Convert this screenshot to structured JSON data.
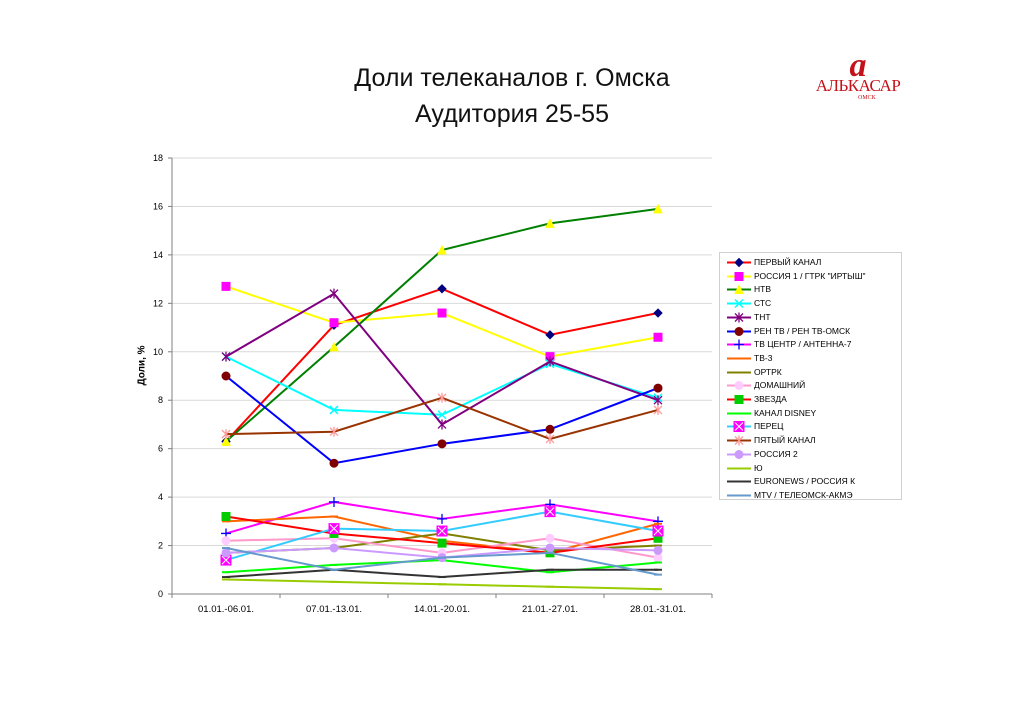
{
  "header": {
    "title_line1": "Доли телеканалов г. Омска",
    "title_line2": "Аудитория 25-55"
  },
  "logo": {
    "mark": "a",
    "name": "АЛЬКАСАР",
    "city": "ОМСК"
  },
  "chart_data": {
    "type": "line",
    "title": "Доли телеканалов г. Омска Аудитория 25-55",
    "xlabel": "",
    "ylabel": "Доли, %",
    "ylim": [
      0,
      18
    ],
    "yticks": [
      0,
      2,
      4,
      6,
      8,
      10,
      12,
      14,
      16,
      18
    ],
    "grid": "horizontal",
    "legend_position": "right",
    "categories": [
      "01.01.-06.01.",
      "07.01.-13.01.",
      "14.01.-20.01.",
      "21.01.-27.01.",
      "28.01.-31.01."
    ],
    "series": [
      {
        "name": "ПЕРВЫЙ КАНАЛ",
        "color": "#ff0000",
        "marker": "diamond",
        "marker_color": "#000080",
        "values": [
          6.3,
          11.1,
          12.6,
          10.7,
          11.6
        ]
      },
      {
        "name": "РОССИЯ 1 / ГТРК \"ИРТЫШ\"",
        "color": "#ffff00",
        "marker": "square",
        "marker_color": "#ff00ff",
        "values": [
          12.7,
          11.2,
          11.6,
          9.8,
          10.6
        ]
      },
      {
        "name": "НТВ",
        "color": "#008000",
        "marker": "triangle",
        "marker_color": "#ffff00",
        "values": [
          6.3,
          10.2,
          14.2,
          15.3,
          15.9
        ]
      },
      {
        "name": "СТС",
        "color": "#00ffff",
        "marker": "x",
        "marker_color": "#00ffff",
        "values": [
          9.8,
          7.6,
          7.4,
          9.5,
          8.1
        ]
      },
      {
        "name": "ТНТ",
        "color": "#800080",
        "marker": "star",
        "marker_color": "#800080",
        "values": [
          9.8,
          12.4,
          7.0,
          9.6,
          8.0
        ]
      },
      {
        "name": "РЕН ТВ / РЕН ТВ-ОМСК",
        "color": "#0000ff",
        "marker": "circle",
        "marker_color": "#800000",
        "values": [
          9.0,
          5.4,
          6.2,
          6.8,
          8.5
        ]
      },
      {
        "name": "ТВ ЦЕНТР / АНТЕННА-7",
        "color": "#ff00ff",
        "marker": "plus",
        "marker_color": "#0000ff",
        "values": [
          2.5,
          3.8,
          3.1,
          3.7,
          3.0
        ]
      },
      {
        "name": "ТВ-3",
        "color": "#ff6600",
        "marker": "dash",
        "marker_color": "#ff6600",
        "values": [
          3.0,
          3.2,
          2.2,
          1.7,
          2.9
        ]
      },
      {
        "name": "ОРТРК",
        "color": "#808000",
        "marker": "dash",
        "marker_color": "#808000",
        "values": [
          1.7,
          1.9,
          2.5,
          1.8,
          2.0
        ]
      },
      {
        "name": "ДОМАШНИЙ",
        "color": "#ff99cc",
        "marker": "circle",
        "marker_color": "#ffccff",
        "values": [
          2.2,
          2.3,
          1.7,
          2.3,
          1.5
        ]
      },
      {
        "name": "ЗВЕЗДА",
        "color": "#ff0000",
        "marker": "square",
        "marker_color": "#00cc00",
        "values": [
          3.2,
          2.5,
          2.1,
          1.7,
          2.3
        ]
      },
      {
        "name": "КАНАЛ DISNEY",
        "color": "#00ff00",
        "marker": "dash",
        "marker_color": "#00ff00",
        "values": [
          0.9,
          1.2,
          1.4,
          0.9,
          1.3
        ]
      },
      {
        "name": "ПЕРЕЦ",
        "color": "#33ccff",
        "marker": "boxx",
        "marker_color": "#ff00ff",
        "values": [
          1.4,
          2.7,
          2.6,
          3.4,
          2.6
        ]
      },
      {
        "name": "ПЯТЫЙ КАНАЛ",
        "color": "#993300",
        "marker": "star",
        "marker_color": "#ff9999",
        "values": [
          6.6,
          6.7,
          8.1,
          6.4,
          7.6
        ]
      },
      {
        "name": "РОССИЯ 2",
        "color": "#cc99ff",
        "marker": "circle",
        "marker_color": "#cc99ff",
        "values": [
          1.7,
          1.9,
          1.5,
          1.9,
          1.8
        ]
      },
      {
        "name": "Ю",
        "color": "#99cc00",
        "marker": "dash",
        "marker_color": "#99cc00",
        "values": [
          0.6,
          0.5,
          0.4,
          0.3,
          0.2
        ]
      },
      {
        "name": "EURONEWS / РОССИЯ К",
        "color": "#333333",
        "marker": "dash",
        "marker_color": "#333333",
        "values": [
          0.7,
          1.0,
          0.7,
          1.0,
          1.0
        ]
      },
      {
        "name": "MTV / ТЕЛЕОМСК-АКМЭ",
        "color": "#6699cc",
        "marker": "dash",
        "marker_color": "#6699cc",
        "values": [
          1.9,
          1.0,
          1.5,
          1.7,
          0.8
        ]
      }
    ]
  }
}
